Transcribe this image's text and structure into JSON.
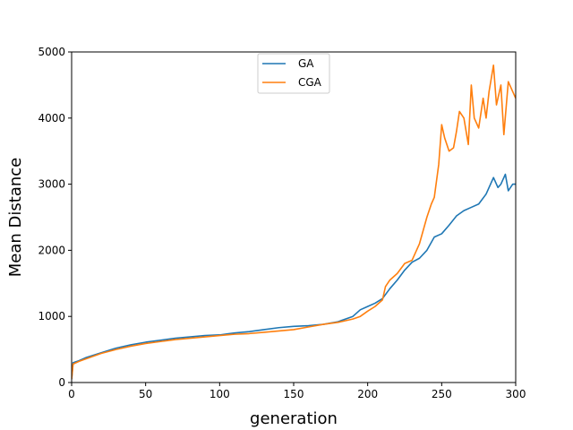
{
  "chart_data": {
    "type": "line",
    "title": "",
    "xlabel": "generation",
    "ylabel": "Mean Distance",
    "xlim": [
      0,
      300
    ],
    "ylim": [
      0,
      5000
    ],
    "xticks": [
      0,
      50,
      100,
      150,
      200,
      250,
      300
    ],
    "yticks": [
      0,
      1000,
      2000,
      3000,
      4000,
      5000
    ],
    "grid": false,
    "legend_position": "top-center",
    "series": [
      {
        "name": "GA",
        "color": "#1f77b4",
        "x": [
          0,
          1,
          5,
          10,
          20,
          30,
          40,
          50,
          60,
          70,
          80,
          90,
          100,
          110,
          120,
          130,
          140,
          150,
          160,
          170,
          180,
          190,
          195,
          200,
          205,
          210,
          215,
          220,
          225,
          230,
          235,
          240,
          245,
          250,
          255,
          260,
          265,
          270,
          275,
          280,
          285,
          288,
          290,
          293,
          295,
          298,
          300
        ],
        "y": [
          50,
          300,
          330,
          380,
          450,
          520,
          570,
          610,
          640,
          670,
          690,
          710,
          720,
          750,
          770,
          800,
          830,
          850,
          860,
          880,
          920,
          1000,
          1100,
          1150,
          1200,
          1270,
          1420,
          1550,
          1700,
          1820,
          1880,
          2000,
          2200,
          2250,
          2380,
          2520,
          2600,
          2650,
          2700,
          2850,
          3100,
          2950,
          3000,
          3150,
          2900,
          3000,
          3000
        ]
      },
      {
        "name": "CGA",
        "color": "#ff7f0e",
        "x": [
          0,
          1,
          5,
          10,
          20,
          30,
          40,
          50,
          60,
          70,
          80,
          90,
          100,
          110,
          120,
          130,
          140,
          150,
          160,
          170,
          180,
          190,
          195,
          200,
          205,
          210,
          212,
          215,
          220,
          225,
          230,
          235,
          240,
          243,
          245,
          248,
          250,
          252,
          255,
          258,
          260,
          262,
          265,
          268,
          270,
          272,
          275,
          278,
          280,
          282,
          285,
          287,
          290,
          292,
          295,
          298,
          300
        ],
        "y": [
          50,
          280,
          320,
          360,
          440,
          500,
          550,
          590,
          620,
          650,
          670,
          690,
          710,
          730,
          740,
          760,
          780,
          800,
          840,
          880,
          910,
          960,
          1000,
          1080,
          1150,
          1250,
          1450,
          1550,
          1650,
          1800,
          1850,
          2100,
          2500,
          2700,
          2800,
          3300,
          3900,
          3700,
          3500,
          3550,
          3800,
          4100,
          4000,
          3600,
          4500,
          4000,
          3850,
          4300,
          4000,
          4400,
          4800,
          4200,
          4500,
          3750,
          4550,
          4400,
          4300
        ]
      }
    ]
  }
}
